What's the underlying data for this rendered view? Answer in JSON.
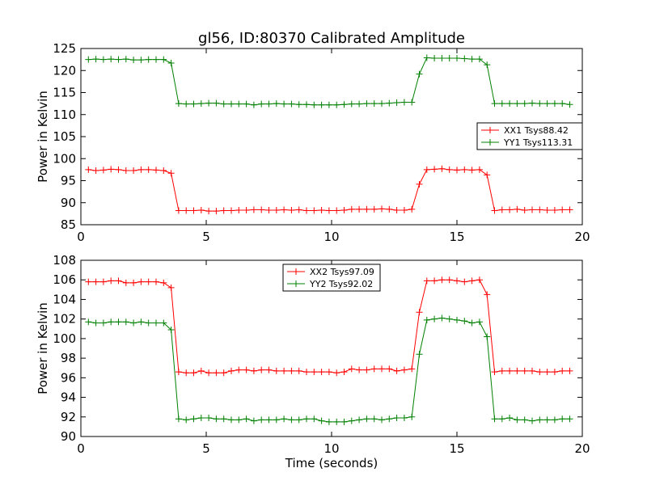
{
  "chart_data": [
    {
      "type": "line",
      "title": "gl56, ID:80370 Calibrated Amplitude",
      "xlabel": "",
      "ylabel": "Power in Kelvin",
      "xlim": [
        0,
        20
      ],
      "ylim": [
        85,
        125
      ],
      "xticks": [
        0,
        5,
        10,
        15,
        20
      ],
      "yticks": [
        85,
        90,
        95,
        100,
        105,
        110,
        115,
        120,
        125
      ],
      "grid": false,
      "legend_position": "right",
      "x": [
        0.3,
        0.6,
        0.9,
        1.2,
        1.5,
        1.8,
        2.1,
        2.4,
        2.7,
        3.0,
        3.3,
        3.6,
        3.9,
        4.2,
        4.5,
        4.8,
        5.1,
        5.4,
        5.7,
        6.0,
        6.3,
        6.6,
        6.9,
        7.2,
        7.5,
        7.8,
        8.1,
        8.4,
        8.7,
        9.0,
        9.3,
        9.6,
        9.9,
        10.2,
        10.5,
        10.8,
        11.1,
        11.4,
        11.7,
        12.0,
        12.3,
        12.6,
        12.9,
        13.2,
        13.5,
        13.8,
        14.1,
        14.4,
        14.7,
        15.0,
        15.3,
        15.6,
        15.9,
        16.2,
        16.5,
        16.8,
        17.1,
        17.4,
        17.7,
        18.0,
        18.3,
        18.6,
        18.9,
        19.2,
        19.5
      ],
      "series": [
        {
          "name": "XX1 Tsys88.42",
          "color": "#ff0000",
          "values": [
            97.5,
            97.3,
            97.4,
            97.6,
            97.5,
            97.3,
            97.3,
            97.5,
            97.5,
            97.4,
            97.3,
            96.7,
            88.2,
            88.2,
            88.2,
            88.3,
            88.1,
            88.1,
            88.2,
            88.2,
            88.3,
            88.3,
            88.4,
            88.4,
            88.3,
            88.3,
            88.4,
            88.3,
            88.4,
            88.2,
            88.2,
            88.3,
            88.2,
            88.2,
            88.3,
            88.5,
            88.5,
            88.5,
            88.5,
            88.6,
            88.5,
            88.3,
            88.3,
            88.5,
            94.2,
            97.5,
            97.6,
            97.7,
            97.5,
            97.4,
            97.5,
            97.4,
            97.5,
            96.3,
            88.2,
            88.4,
            88.4,
            88.5,
            88.3,
            88.4,
            88.4,
            88.3,
            88.3,
            88.4,
            88.4
          ]
        },
        {
          "name": "YY1 Tsys113.31",
          "color": "#008000",
          "values": [
            122.5,
            122.6,
            122.5,
            122.6,
            122.5,
            122.6,
            122.4,
            122.4,
            122.5,
            122.5,
            122.5,
            121.7,
            112.5,
            112.4,
            112.4,
            112.5,
            112.6,
            112.6,
            112.4,
            112.4,
            112.4,
            112.4,
            112.2,
            112.4,
            112.4,
            112.5,
            112.4,
            112.4,
            112.3,
            112.3,
            112.2,
            112.2,
            112.2,
            112.2,
            112.3,
            112.4,
            112.4,
            112.5,
            112.5,
            112.5,
            112.6,
            112.7,
            112.8,
            112.8,
            119.2,
            122.9,
            122.8,
            122.8,
            122.8,
            122.8,
            122.7,
            122.6,
            122.6,
            121.3,
            112.5,
            112.5,
            112.5,
            112.5,
            112.5,
            112.6,
            112.5,
            112.5,
            112.5,
            112.5,
            112.3
          ]
        }
      ]
    },
    {
      "type": "line",
      "title": "",
      "xlabel": "Time (seconds)",
      "ylabel": "Power in Kelvin",
      "xlim": [
        0,
        20
      ],
      "ylim": [
        90,
        108
      ],
      "xticks": [
        0,
        5,
        10,
        15,
        20
      ],
      "yticks": [
        90,
        92,
        94,
        96,
        98,
        100,
        102,
        104,
        106,
        108
      ],
      "grid": false,
      "legend_position": "top-center",
      "x": [
        0.3,
        0.6,
        0.9,
        1.2,
        1.5,
        1.8,
        2.1,
        2.4,
        2.7,
        3.0,
        3.3,
        3.6,
        3.9,
        4.2,
        4.5,
        4.8,
        5.1,
        5.4,
        5.7,
        6.0,
        6.3,
        6.6,
        6.9,
        7.2,
        7.5,
        7.8,
        8.1,
        8.4,
        8.7,
        9.0,
        9.3,
        9.6,
        9.9,
        10.2,
        10.5,
        10.8,
        11.1,
        11.4,
        11.7,
        12.0,
        12.3,
        12.6,
        12.9,
        13.2,
        13.5,
        13.8,
        14.1,
        14.4,
        14.7,
        15.0,
        15.3,
        15.6,
        15.9,
        16.2,
        16.5,
        16.8,
        17.1,
        17.4,
        17.7,
        18.0,
        18.3,
        18.6,
        18.9,
        19.2,
        19.5
      ],
      "series": [
        {
          "name": "XX2 Tsys97.09",
          "color": "#ff0000",
          "values": [
            105.8,
            105.8,
            105.8,
            105.9,
            105.9,
            105.7,
            105.7,
            105.8,
            105.8,
            105.8,
            105.7,
            105.2,
            96.6,
            96.5,
            96.5,
            96.7,
            96.5,
            96.5,
            96.5,
            96.7,
            96.8,
            96.8,
            96.7,
            96.8,
            96.8,
            96.7,
            96.7,
            96.7,
            96.7,
            96.6,
            96.6,
            96.6,
            96.6,
            96.5,
            96.6,
            96.9,
            96.8,
            96.8,
            96.9,
            96.9,
            96.9,
            96.7,
            96.8,
            96.9,
            102.7,
            105.9,
            105.9,
            106.0,
            106.0,
            105.9,
            105.8,
            105.9,
            106.0,
            104.5,
            96.6,
            96.7,
            96.7,
            96.7,
            96.7,
            96.7,
            96.6,
            96.6,
            96.6,
            96.7,
            96.7
          ]
        },
        {
          "name": "YY2 Tsys92.02",
          "color": "#008000",
          "values": [
            101.7,
            101.6,
            101.6,
            101.7,
            101.7,
            101.7,
            101.6,
            101.7,
            101.6,
            101.6,
            101.6,
            100.9,
            91.8,
            91.7,
            91.8,
            91.9,
            91.9,
            91.8,
            91.8,
            91.7,
            91.7,
            91.8,
            91.6,
            91.7,
            91.7,
            91.7,
            91.8,
            91.7,
            91.7,
            91.8,
            91.8,
            91.6,
            91.5,
            91.5,
            91.5,
            91.6,
            91.7,
            91.8,
            91.8,
            91.7,
            91.8,
            91.9,
            91.9,
            92.0,
            98.4,
            101.9,
            102.0,
            102.1,
            102.0,
            101.9,
            101.8,
            101.6,
            101.7,
            100.2,
            91.8,
            91.8,
            91.9,
            91.7,
            91.7,
            91.6,
            91.7,
            91.7,
            91.7,
            91.8,
            91.8
          ]
        }
      ]
    }
  ]
}
